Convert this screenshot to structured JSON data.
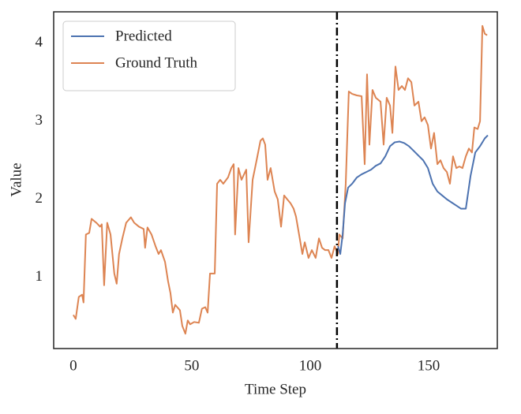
{
  "chart_data": {
    "type": "line",
    "xlabel": "Time Step",
    "ylabel": "Value",
    "xlim": [
      -8.3,
      179
    ],
    "ylim": [
      0.09,
      4.4
    ],
    "xticks": [
      0,
      50,
      100,
      150
    ],
    "yticks": [
      1,
      2,
      3,
      4
    ],
    "grid": false,
    "legend": "upper left",
    "vline": 111.3,
    "vline_color": "#000000",
    "series": [
      {
        "name": "Predicted",
        "color": "#4c72b0",
        "x": [
          111.7,
          112.7,
          113.7,
          114.7,
          116,
          117.7,
          119.7,
          121.7,
          123.7,
          125.7,
          127.7,
          129.7,
          131.7,
          133.7,
          135.7,
          137.7,
          139.7,
          141.7,
          143.7,
          145.7,
          147.7,
          149.7,
          151.7,
          153.7,
          155.7,
          157.7,
          159.7,
          161.7,
          163.7,
          165.7,
          167.7,
          169.7,
          171.7,
          173.7,
          175
        ],
        "values": [
          1.4,
          1.3,
          1.55,
          1.95,
          2.15,
          2.2,
          2.28,
          2.32,
          2.35,
          2.38,
          2.43,
          2.46,
          2.55,
          2.68,
          2.73,
          2.74,
          2.72,
          2.68,
          2.62,
          2.56,
          2.5,
          2.4,
          2.2,
          2.1,
          2.05,
          2.0,
          1.96,
          1.92,
          1.88,
          1.88,
          2.3,
          2.6,
          2.68,
          2.78,
          2.82
        ]
      },
      {
        "name": "Ground Truth",
        "color": "#dd8452",
        "x": [
          0,
          1,
          2.3,
          3.7,
          4.3,
          5.3,
          6.7,
          7.7,
          9.7,
          11.3,
          12,
          13,
          14.3,
          15.7,
          17.3,
          18.3,
          19.3,
          20.7,
          22.3,
          24.3,
          25.7,
          27.7,
          29.7,
          30.3,
          31.3,
          33,
          34.7,
          36,
          37,
          38.7,
          40,
          41,
          42,
          43,
          45,
          46,
          47.3,
          48.3,
          49.3,
          51,
          53,
          54.3,
          55.7,
          56.7,
          57.7,
          59.7,
          60.7,
          62,
          63.3,
          65.3,
          66.7,
          67.7,
          68.3,
          69.7,
          71,
          73,
          74,
          75.7,
          76.7,
          77.7,
          79,
          80,
          81,
          82,
          83.3,
          85,
          86.3,
          87.7,
          89,
          90.3,
          91.7,
          93,
          94,
          95.3,
          96.7,
          97.7,
          99.3,
          100.7,
          102.3,
          103.7,
          105,
          106.3,
          107.7,
          109,
          110.3,
          111.7,
          112.3,
          113.7,
          115,
          116.3,
          117.7,
          119.7,
          121.7,
          123,
          124,
          125,
          126.3,
          127.7,
          129.7,
          131,
          132.3,
          133.7,
          134.7,
          136,
          137.3,
          138.7,
          140,
          141.3,
          142.7,
          144,
          145.7,
          147,
          148.3,
          149.7,
          151,
          152.3,
          153.7,
          155,
          156.3,
          157.7,
          159,
          160.3,
          161.7,
          163,
          164.3,
          165.7,
          167,
          168.3,
          169.3,
          170.7,
          171.7,
          172.7,
          173.7,
          174.7
        ],
        "values": [
          0.52,
          0.47,
          0.75,
          0.78,
          0.68,
          1.55,
          1.57,
          1.75,
          1.7,
          1.65,
          1.68,
          0.9,
          1.7,
          1.55,
          1.05,
          0.92,
          1.3,
          1.5,
          1.7,
          1.77,
          1.7,
          1.65,
          1.62,
          1.38,
          1.64,
          1.55,
          1.4,
          1.3,
          1.35,
          1.2,
          0.95,
          0.8,
          0.55,
          0.65,
          0.58,
          0.38,
          0.28,
          0.45,
          0.4,
          0.43,
          0.42,
          0.6,
          0.62,
          0.55,
          1.05,
          1.05,
          2.2,
          2.25,
          2.2,
          2.28,
          2.4,
          2.45,
          1.55,
          2.4,
          2.25,
          2.38,
          1.45,
          2.25,
          2.4,
          2.55,
          2.75,
          2.78,
          2.7,
          2.25,
          2.4,
          2.1,
          2.0,
          1.65,
          2.05,
          2.0,
          1.95,
          1.88,
          1.78,
          1.55,
          1.3,
          1.45,
          1.25,
          1.35,
          1.25,
          1.5,
          1.38,
          1.35,
          1.35,
          1.25,
          1.4,
          1.3,
          1.55,
          1.5,
          2.2,
          3.38,
          3.35,
          3.33,
          3.32,
          2.45,
          3.6,
          2.7,
          3.4,
          3.3,
          3.25,
          2.7,
          3.3,
          3.2,
          2.85,
          3.7,
          3.4,
          3.45,
          3.4,
          3.55,
          3.5,
          3.2,
          3.25,
          3.0,
          3.05,
          2.95,
          2.65,
          2.85,
          2.45,
          2.5,
          2.4,
          2.35,
          2.2,
          2.55,
          2.4,
          2.42,
          2.4,
          2.55,
          2.65,
          2.6,
          2.92,
          2.9,
          3.0,
          4.22,
          4.12,
          4.1
        ]
      }
    ]
  }
}
